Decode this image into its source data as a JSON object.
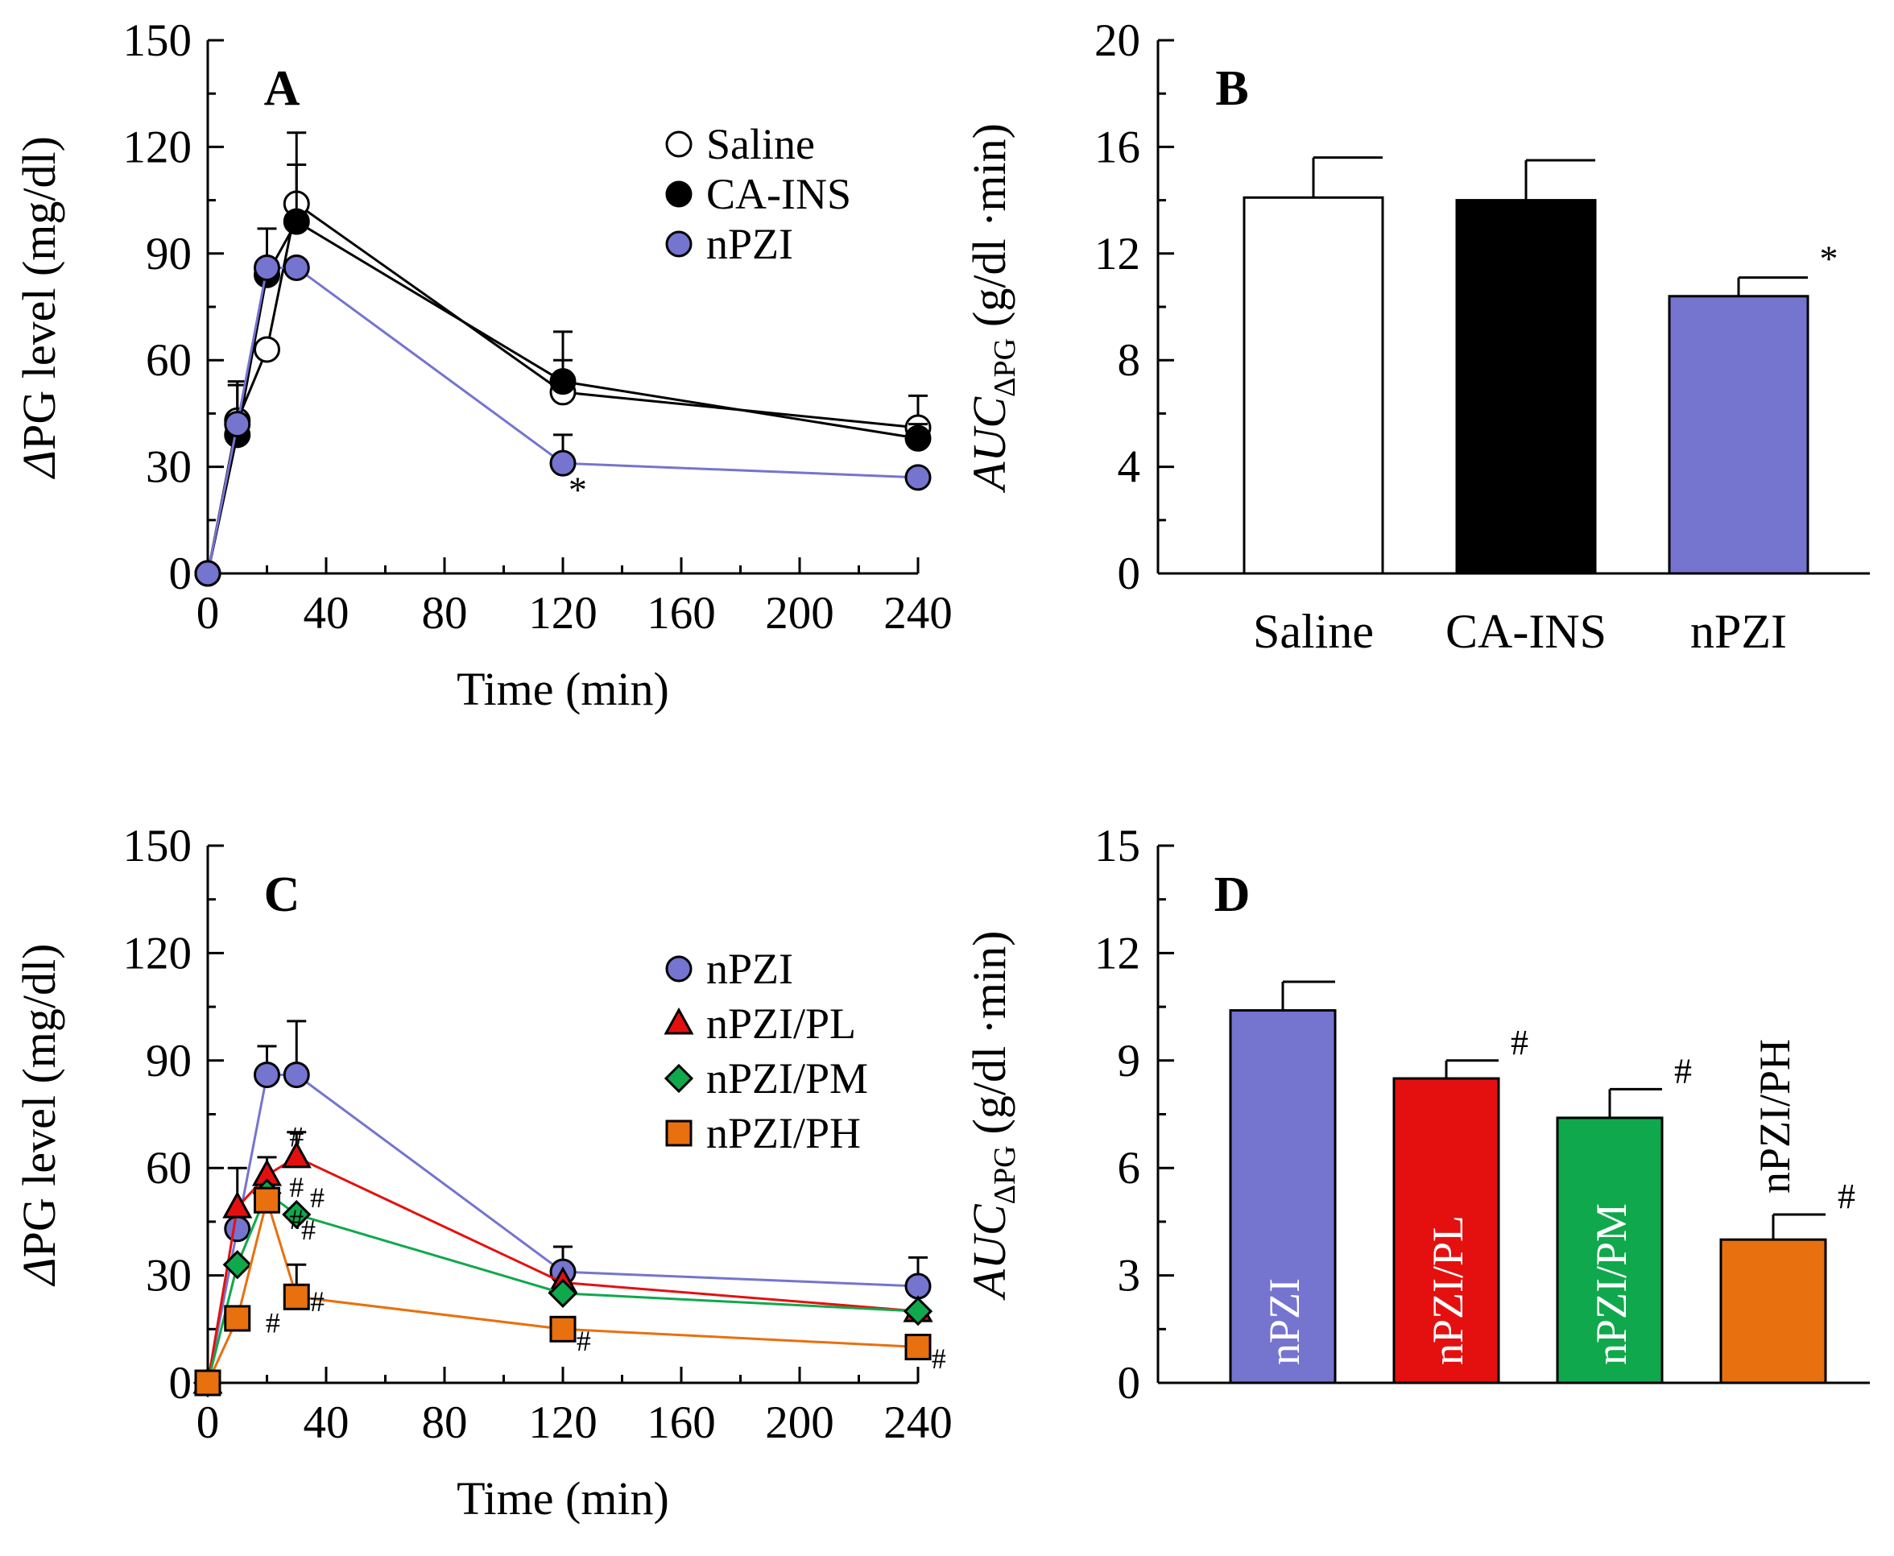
{
  "colors": {
    "saline": "#ffffff",
    "ca_ins": "#000000",
    "npzi": "#7574cf",
    "pl": "#e41010",
    "pm": "#10a84c",
    "ph": "#e8700f",
    "line_black": "#000000"
  },
  "chart_data": [
    {
      "panel": "A",
      "type": "line",
      "xlabel": "Time (min)",
      "ylabel_prefix": "Δ",
      "ylabel_rest": "PG level (mg/dl)",
      "xlim": [
        0,
        240
      ],
      "ylim": [
        0,
        150
      ],
      "xticks": [
        "0",
        "40",
        "80",
        "120",
        "160",
        "200",
        "240"
      ],
      "yticks": [
        "0",
        "30",
        "60",
        "90",
        "120",
        "150"
      ],
      "x": [
        0,
        10,
        20,
        30,
        120,
        240
      ],
      "series": [
        {
          "name": "Saline",
          "marker": "circle",
          "color": "saline",
          "values": [
            0,
            43,
            63,
            104,
            51,
            41
          ],
          "err": [
            0,
            10,
            0,
            20,
            17,
            9
          ]
        },
        {
          "name": "CA-INS",
          "marker": "circle",
          "color": "ca_ins",
          "values": [
            0,
            39,
            84,
            99,
            54,
            38
          ],
          "err": [
            0,
            15,
            13,
            16,
            6,
            4
          ]
        },
        {
          "name": "nPZI",
          "marker": "circle",
          "color": "npzi",
          "values": [
            0,
            42,
            86,
            86,
            31,
            27
          ],
          "err": [
            0,
            0,
            0,
            0,
            8,
            0
          ]
        }
      ],
      "annotations": [
        {
          "text": "*",
          "x": 125,
          "y": 20
        }
      ]
    },
    {
      "panel": "B",
      "type": "bar",
      "ylabel_main": "AUC",
      "ylabel_sub": "ΔPG",
      "ylabel_units": "(g/dl ·min)",
      "categories": [
        "Saline",
        "CA-INS",
        "nPZI"
      ],
      "values": [
        14.1,
        14.0,
        10.4
      ],
      "err": [
        1.5,
        1.5,
        0.7
      ],
      "bar_colors": [
        "saline",
        "ca_ins",
        "npzi"
      ],
      "ylim": [
        0,
        20
      ],
      "yticks": [
        "0",
        "4",
        "8",
        "12",
        "16",
        "20"
      ],
      "annotations": [
        {
          "text": "*",
          "index": 2
        }
      ]
    },
    {
      "panel": "C",
      "type": "line",
      "xlabel": "Time (min)",
      "ylabel_prefix": "Δ",
      "ylabel_rest": "PG level (mg/dl)",
      "xlim": [
        0,
        240
      ],
      "ylim": [
        0,
        150
      ],
      "xticks": [
        "0",
        "40",
        "80",
        "120",
        "160",
        "200",
        "240"
      ],
      "yticks": [
        "0",
        "30",
        "60",
        "90",
        "120",
        "150"
      ],
      "x": [
        0,
        10,
        20,
        30,
        120,
        240
      ],
      "series": [
        {
          "name": "nPZI",
          "marker": "circle",
          "color": "npzi",
          "values": [
            0,
            43,
            86,
            86,
            31,
            27
          ],
          "err": [
            0,
            0,
            8,
            15,
            7,
            8
          ]
        },
        {
          "name": "nPZI/PL",
          "marker": "triangle",
          "color": "pl",
          "values": [
            0,
            49,
            58,
            63,
            28,
            20
          ],
          "err": [
            0,
            11,
            5,
            7,
            0,
            0
          ]
        },
        {
          "name": "nPZI/PM",
          "marker": "diamond",
          "color": "pm",
          "values": [
            0,
            33,
            53,
            47,
            25,
            20
          ],
          "err": [
            0,
            0,
            0,
            0,
            0,
            0
          ]
        },
        {
          "name": "nPZI/PH",
          "marker": "square",
          "color": "ph",
          "values": [
            0,
            18,
            51,
            24,
            15,
            10
          ],
          "err": [
            0,
            0,
            0,
            9,
            0,
            0
          ]
        }
      ],
      "annotations": [
        {
          "text": "#",
          "x": 22,
          "y": 14
        },
        {
          "text": "#",
          "x": 30,
          "y": 66
        },
        {
          "text": "#",
          "x": 30,
          "y": 52
        },
        {
          "text": "#",
          "x": 30,
          "y": 43
        },
        {
          "text": "#",
          "x": 34,
          "y": 40
        },
        {
          "text": "#",
          "x": 37,
          "y": 49
        },
        {
          "text": "#",
          "x": 37,
          "y": 20
        },
        {
          "text": "#",
          "x": 127,
          "y": 9
        },
        {
          "text": "#",
          "x": 247,
          "y": 4
        }
      ]
    },
    {
      "panel": "D",
      "type": "bar",
      "ylabel_main": "AUC",
      "ylabel_sub": "ΔPG",
      "ylabel_units": "(g/dl ·min)",
      "categories": [
        "nPZI",
        "nPZI/PL",
        "nPZI/PM",
        "nPZI/PH"
      ],
      "values": [
        10.4,
        8.5,
        7.4,
        4.0
      ],
      "err": [
        0.8,
        0.5,
        0.8,
        0.7
      ],
      "bar_colors": [
        "npzi",
        "pl",
        "pm",
        "ph"
      ],
      "ylim": [
        0,
        15
      ],
      "yticks": [
        "0",
        "3",
        "6",
        "9",
        "12",
        "15"
      ],
      "annotations": [
        {
          "text": "#",
          "index": 1
        },
        {
          "text": "#",
          "index": 2
        },
        {
          "text": "#",
          "index": 3
        }
      ]
    }
  ]
}
